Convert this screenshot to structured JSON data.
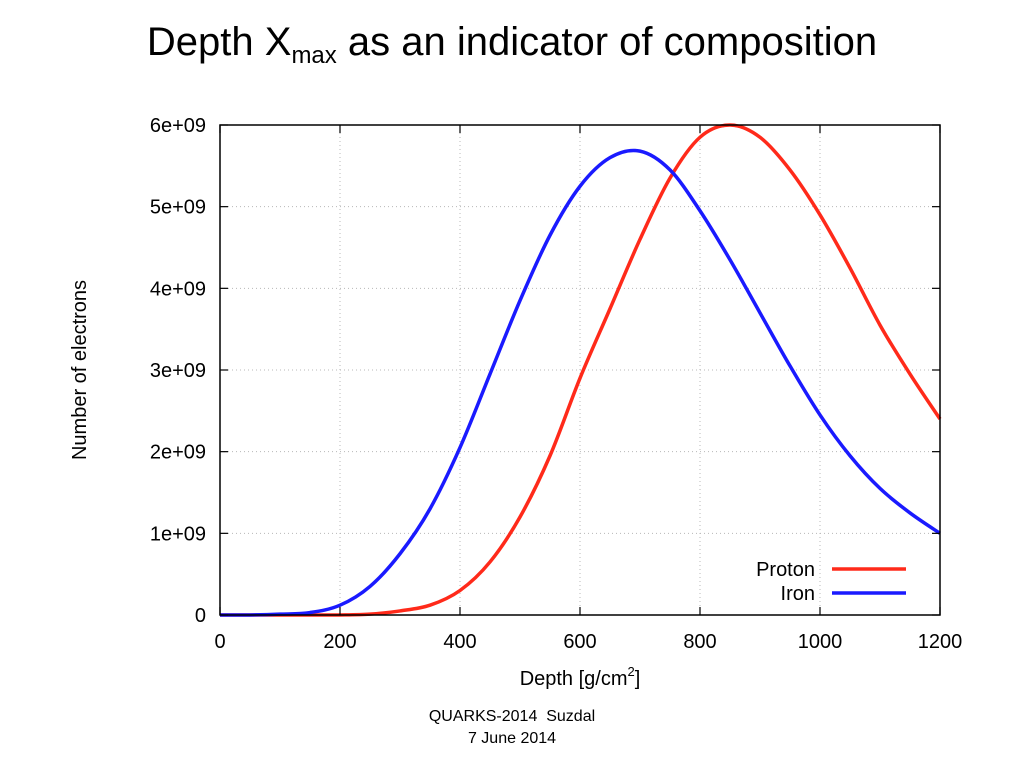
{
  "slide": {
    "title_main": "Depth X",
    "title_sub": "max",
    "title_rest": " as an indicator of composition",
    "footer_line1": "QUARKS-2014  Suzdal",
    "footer_line2": "7 June 2014"
  },
  "chart_data": {
    "type": "line",
    "title": "",
    "xlabel": "Depth [g/cm",
    "xlabel_sup": "2",
    "xlabel_end": "]",
    "ylabel": "Number of electrons",
    "xlim": [
      0,
      1200
    ],
    "ylim": [
      0,
      6000000000.0
    ],
    "xticks": [
      0,
      200,
      400,
      600,
      800,
      1000,
      1200
    ],
    "xtick_labels": [
      "0",
      "200",
      "400",
      "600",
      "800",
      "1000",
      "1200"
    ],
    "yticks": [
      0,
      1000000000.0,
      2000000000.0,
      3000000000.0,
      4000000000.0,
      5000000000.0,
      6000000000.0
    ],
    "ytick_labels": [
      "0",
      "1e+09",
      "2e+09",
      "3e+09",
      "4e+09",
      "5e+09",
      "6e+09"
    ],
    "grid": true,
    "legend_position": "bottom-right",
    "series": [
      {
        "name": "Proton",
        "color": "#ff2a1a",
        "x": [
          0,
          50,
          100,
          150,
          200,
          250,
          300,
          350,
          400,
          450,
          500,
          550,
          600,
          650,
          700,
          750,
          800,
          850,
          900,
          950,
          1000,
          1050,
          1100,
          1150,
          1200
        ],
        "y": [
          0,
          0,
          0,
          0,
          0,
          10000000.0,
          50000000.0,
          120000000.0,
          300000000.0,
          650000000.0,
          1200000000.0,
          1950000000.0,
          2900000000.0,
          3750000000.0,
          4600000000.0,
          5350000000.0,
          5850000000.0,
          6000000000.0,
          5850000000.0,
          5450000000.0,
          4900000000.0,
          4250000000.0,
          3550000000.0,
          2950000000.0,
          2400000000.0
        ]
      },
      {
        "name": "Iron",
        "color": "#1a1aff",
        "x": [
          0,
          50,
          100,
          150,
          200,
          250,
          300,
          350,
          400,
          450,
          500,
          550,
          600,
          650,
          700,
          750,
          800,
          850,
          900,
          950,
          1000,
          1050,
          1100,
          1150,
          1200
        ],
        "y": [
          0,
          0,
          10000000.0,
          30000000.0,
          120000000.0,
          350000000.0,
          750000000.0,
          1300000000.0,
          2050000000.0,
          2950000000.0,
          3850000000.0,
          4650000000.0,
          5250000000.0,
          5600000000.0,
          5680000000.0,
          5450000000.0,
          4950000000.0,
          4350000000.0,
          3700000000.0,
          3050000000.0,
          2450000000.0,
          1950000000.0,
          1550000000.0,
          1250000000.0,
          1000000000.0
        ]
      }
    ]
  }
}
